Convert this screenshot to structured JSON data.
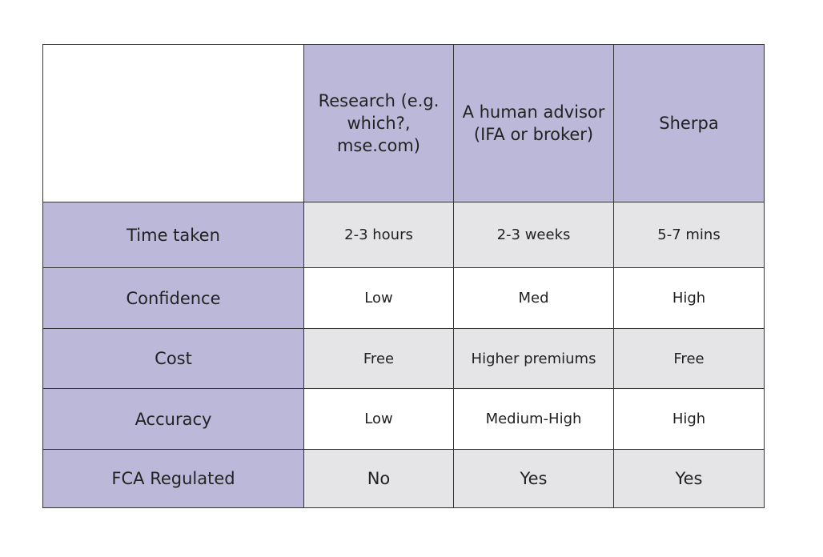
{
  "table": {
    "columns": [
      "Research (e.g. which?, mse.com)",
      "A human advisor (IFA or broker)",
      "Sherpa"
    ],
    "rows": [
      {
        "label": "Time taken",
        "cells": [
          "2-3 hours",
          "2-3 weeks",
          "5-7 mins"
        ]
      },
      {
        "label": "Confidence",
        "cells": [
          "Low",
          "Med",
          "High"
        ]
      },
      {
        "label": "Cost",
        "cells": [
          "Free",
          "Higher premiums",
          "Free"
        ]
      },
      {
        "label": "Accuracy",
        "cells": [
          "Low",
          "Medium-High",
          "High"
        ]
      },
      {
        "label": "FCA Regulated",
        "cells": [
          "No",
          "Yes",
          "Yes"
        ]
      }
    ]
  },
  "colors": {
    "header_fill": "#bcb8da",
    "shaded_row": "#e5e5e8",
    "border": "#333333"
  }
}
